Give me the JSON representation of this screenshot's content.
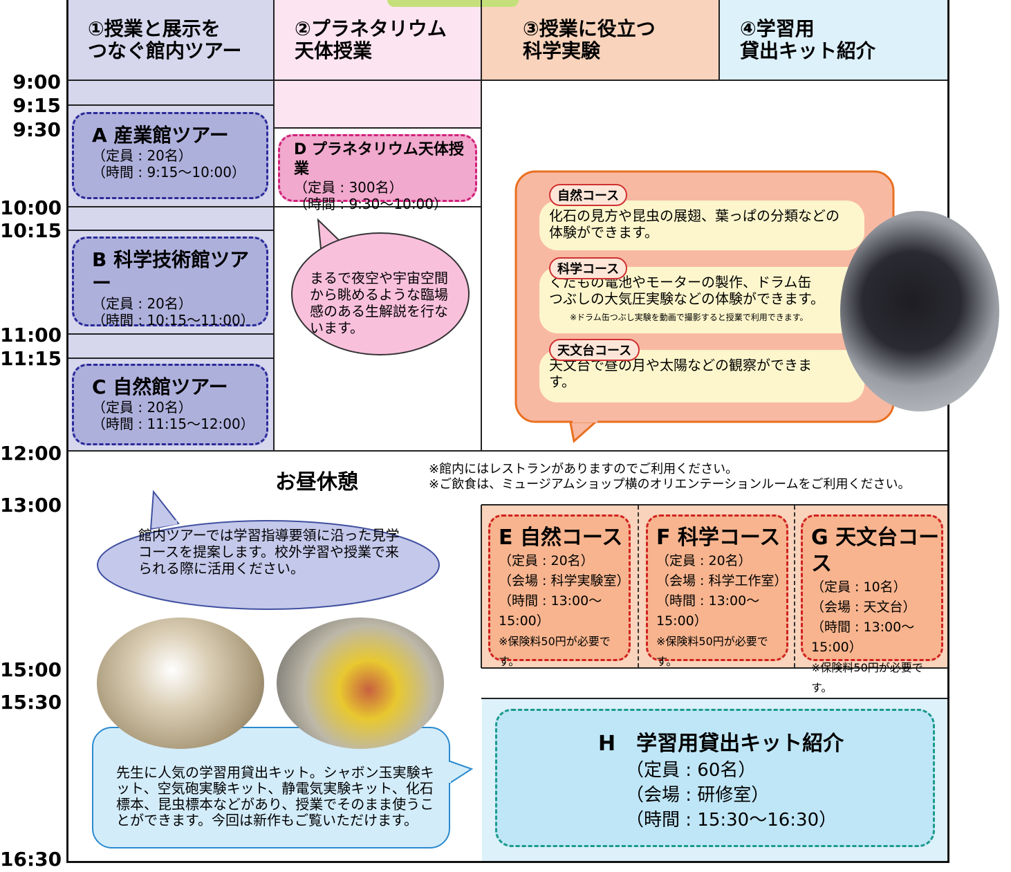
{
  "header": {
    "columns": [
      "①授業と展示を\nつなぐ館内ツアー",
      "②プラネタリウム\n天体授業",
      "③授業に役立つ\n科学実験",
      "④学習用\n貸出キット紹介"
    ]
  },
  "times": [
    "9:00",
    "9:15",
    "9:30",
    "10:00",
    "10:15",
    "11:00",
    "11:15",
    "12:00",
    "13:00",
    "15:00",
    "15:30",
    "16:30"
  ],
  "tours": [
    {
      "title": "A 産業館ツアー",
      "capacity": "（定員 : 20名）",
      "time": "（時間 : 9:15～10:00）"
    },
    {
      "title": "B 科学技術館ツアー",
      "capacity": "（定員 : 20名）",
      "time": "（時間 : 10:15～11:00）"
    },
    {
      "title": "C 自然館ツアー",
      "capacity": "（定員 : 20名）",
      "time": "（時間 : 11:15～12:00）"
    }
  ],
  "planetarium": {
    "title": "D プラネタリウム天体授業",
    "capacity": "（定員 : 300名）",
    "time": "（時間 : 9:30～10:00）",
    "bubble": "まるで夜空や宇宙空間\nから眺めるような臨場\n感のある生解説を行な\nいます。"
  },
  "courses": [
    {
      "name": "自然コース",
      "text": "化石の見方や昆虫の展翅、葉っぱの分類などの\n体験ができます。"
    },
    {
      "name": "科学コース",
      "text": "くだもの電池やモーターの製作、ドラム缶\nつぶしの大気圧実験などの体験ができます。",
      "note": "※ドラム缶つぶし実験を動画で撮影すると授業で利用できます。"
    },
    {
      "name": "天文台コース",
      "text": "天文台で昼の月や太陽などの観察ができま\nす。"
    }
  ],
  "lunch": {
    "title": "お昼休憩",
    "notes": [
      "※館内にはレストランがありますのでご利用ください。",
      "※ご飲食は、ミュージアムショップ横のオリエンテーションルームをご利用ください。"
    ]
  },
  "tour_bubble": "館内ツアーでは学習指導要領に沿った見学\nコースを提案します。校外学習や授業で来\nられる際に活用ください。",
  "experiments": [
    {
      "title": "E 自然コース",
      "capacity": "（定員 : 20名）",
      "venue": "（会場 : 科学実験室）",
      "time": "（時間 : 13:00～15:00）",
      "note": "※保険料50円が必要です。"
    },
    {
      "title": "F 科学コース",
      "capacity": "（定員 : 20名）",
      "venue": "（会場 : 科学工作室）",
      "time": "（時間 : 13:00～15:00）",
      "note": "※保険料50円が必要です。"
    },
    {
      "title": "G 天文台コース",
      "capacity": "（定員 : 10名）",
      "venue": "（会場 : 天文台）",
      "time": "（時間 : 13:00～15:00）",
      "note": "※保険料50円が必要です。"
    }
  ],
  "kit_bubble": "先生に人気の学習用貸出キット。シャボン玉実験キ\nット、空気砲実験キット、静電気実験キット、化石\n標本、昆虫標本などがあり、授業でそのまま使うこ\nとができます。今回は新作もご覧いただけます。",
  "kit": {
    "title": "H　学習用貸出キット紹介",
    "capacity": "（定員 : 60名）",
    "venue": "（会場 : 研修室）",
    "time": "（時間 : 15:30～16:30）"
  }
}
